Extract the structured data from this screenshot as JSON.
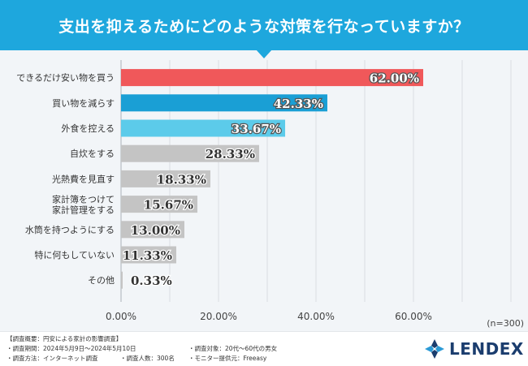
{
  "header": {
    "title": "支出を抑えるためにどのような対策を行なっていますか？"
  },
  "chart_data": {
    "type": "bar",
    "orientation": "horizontal",
    "categories": [
      "できるだけ安い物を買う",
      "買い物を減らす",
      "外食を控える",
      "自炊をする",
      "光熱費を見直す",
      "家計簿をつけて\n家計管理をする",
      "水筒を持つようにする",
      "特に何もしていない",
      "その他"
    ],
    "values": [
      62.0,
      42.33,
      33.67,
      28.33,
      18.33,
      15.67,
      13.0,
      11.33,
      0.33
    ],
    "value_labels": [
      "62.00%",
      "42.33%",
      "33.67%",
      "28.33%",
      "18.33%",
      "15.67%",
      "13.00%",
      "11.33%",
      "0.33%"
    ],
    "bar_colors": [
      "#f0585a",
      "#1a9fd5",
      "#5ccbea",
      "#c4c4c4",
      "#c4c4c4",
      "#c4c4c4",
      "#c4c4c4",
      "#c4c4c4",
      "#c4c4c4"
    ],
    "xlim": [
      0,
      70
    ],
    "xticks": [
      0,
      20,
      40,
      60
    ],
    "xtick_labels": [
      "0.00%",
      "20.00%",
      "40.00%",
      "60.00%"
    ],
    "grid": true,
    "note": "(n=300)"
  },
  "footer": {
    "heading": "【調査概要：円安による家計の影響調査】",
    "period": "・調査期間：2024年5月9日〜2024年5月10日",
    "method": "・調査方法：インターネット調査",
    "respondents": "・調査人数：300名",
    "target": "・調査対象：20代〜60代の男女",
    "provider": "・モニター提供元：Freeasy"
  },
  "logo": {
    "text": "LENDEX"
  },
  "colors": {
    "banner": "#1ea7dd",
    "background": "#f2f5f8",
    "logo": "#1b3d6e"
  }
}
